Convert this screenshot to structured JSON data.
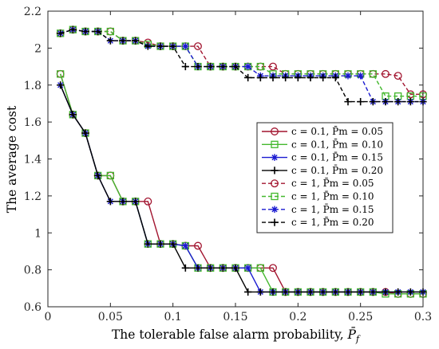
{
  "chart_data": {
    "type": "line",
    "title": "",
    "xlabel": "The tolerable false alarm probability, P̄f",
    "ylabel": "The average cost",
    "xlim": [
      0,
      0.3
    ],
    "ylim": [
      0.6,
      2.2
    ],
    "xticks": [
      "0",
      "0.05",
      "0.1",
      "0.15",
      "0.2",
      "0.25",
      "0.3"
    ],
    "yticks": [
      "0.6",
      "0.8",
      "1",
      "1.2",
      "1.4",
      "1.6",
      "1.8",
      "2",
      "2.2"
    ],
    "grid": false,
    "legend_position": "right",
    "x": [
      0.01,
      0.02,
      0.03,
      0.04,
      0.05,
      0.06,
      0.07,
      0.08,
      0.09,
      0.1,
      0.11,
      0.12,
      0.13,
      0.14,
      0.15,
      0.16,
      0.17,
      0.18,
      0.19,
      0.2,
      0.21,
      0.22,
      0.23,
      0.24,
      0.25,
      0.26,
      0.27,
      0.28,
      0.29,
      0.3
    ],
    "series": [
      {
        "name": "c = 0.1, P̄m = 0.05",
        "color": "#a2142f",
        "marker": "circle",
        "dash": "solid",
        "values": [
          1.86,
          1.64,
          1.54,
          1.31,
          1.31,
          1.17,
          1.17,
          1.17,
          0.94,
          0.94,
          0.93,
          0.93,
          0.81,
          0.81,
          0.81,
          0.81,
          0.81,
          0.81,
          0.68,
          0.68,
          0.68,
          0.68,
          0.68,
          0.68,
          0.68,
          0.68,
          0.68,
          0.67,
          0.67,
          0.67
        ]
      },
      {
        "name": "c = 0.1, P̄m = 0.10",
        "color": "#44b82e",
        "marker": "square",
        "dash": "solid",
        "values": [
          1.86,
          1.64,
          1.54,
          1.31,
          1.31,
          1.17,
          1.17,
          0.94,
          0.94,
          0.94,
          0.93,
          0.81,
          0.81,
          0.81,
          0.81,
          0.81,
          0.81,
          0.68,
          0.68,
          0.68,
          0.68,
          0.68,
          0.68,
          0.68,
          0.68,
          0.68,
          0.67,
          0.67,
          0.67,
          0.67
        ]
      },
      {
        "name": "c = 0.1, P̄m = 0.15",
        "color": "#1a1ad1",
        "marker": "asterisk",
        "dash": "solid",
        "values": [
          1.8,
          1.64,
          1.54,
          1.31,
          1.17,
          1.17,
          1.17,
          0.94,
          0.94,
          0.94,
          0.93,
          0.81,
          0.81,
          0.81,
          0.81,
          0.81,
          0.68,
          0.68,
          0.68,
          0.68,
          0.68,
          0.68,
          0.68,
          0.68,
          0.68,
          0.68,
          0.68,
          0.68,
          0.68,
          0.68
        ]
      },
      {
        "name": "c = 0.1, P̄m = 0.20",
        "color": "#000000",
        "marker": "plus",
        "dash": "solid",
        "values": [
          1.8,
          1.64,
          1.54,
          1.31,
          1.17,
          1.17,
          1.17,
          0.94,
          0.94,
          0.94,
          0.81,
          0.81,
          0.81,
          0.81,
          0.81,
          0.68,
          0.68,
          0.68,
          0.68,
          0.68,
          0.68,
          0.68,
          0.68,
          0.68,
          0.68,
          0.68,
          0.68,
          0.68,
          0.68,
          0.68
        ]
      },
      {
        "name": "c = 1, P̄m = 0.05",
        "color": "#a2142f",
        "marker": "circle",
        "dash": "dashed",
        "values": [
          2.08,
          2.1,
          2.09,
          2.09,
          2.09,
          2.04,
          2.04,
          2.03,
          2.01,
          2.01,
          2.01,
          2.01,
          1.9,
          1.9,
          1.9,
          1.9,
          1.9,
          1.9,
          1.86,
          1.86,
          1.86,
          1.86,
          1.86,
          1.86,
          1.86,
          1.86,
          1.86,
          1.85,
          1.75,
          1.75
        ]
      },
      {
        "name": "c = 1, P̄m = 0.10",
        "color": "#44b82e",
        "marker": "square",
        "dash": "dashed",
        "values": [
          2.08,
          2.1,
          2.09,
          2.09,
          2.09,
          2.04,
          2.04,
          2.02,
          2.01,
          2.01,
          2.01,
          1.9,
          1.9,
          1.9,
          1.9,
          1.9,
          1.9,
          1.86,
          1.86,
          1.86,
          1.86,
          1.86,
          1.86,
          1.86,
          1.86,
          1.86,
          1.74,
          1.74,
          1.74,
          1.74
        ]
      },
      {
        "name": "c = 1, P̄m = 0.15",
        "color": "#1a1ad1",
        "marker": "asterisk",
        "dash": "dashed",
        "values": [
          2.08,
          2.1,
          2.09,
          2.09,
          2.04,
          2.04,
          2.04,
          2.01,
          2.01,
          2.01,
          2.01,
          1.9,
          1.9,
          1.9,
          1.9,
          1.9,
          1.85,
          1.85,
          1.85,
          1.85,
          1.85,
          1.85,
          1.85,
          1.85,
          1.85,
          1.71,
          1.71,
          1.71,
          1.71,
          1.71
        ]
      },
      {
        "name": "c = 1, P̄m = 0.20",
        "color": "#000000",
        "marker": "plus",
        "dash": "dashed",
        "values": [
          2.08,
          2.1,
          2.09,
          2.09,
          2.04,
          2.04,
          2.04,
          2.01,
          2.01,
          2.01,
          1.9,
          1.9,
          1.9,
          1.9,
          1.9,
          1.84,
          1.84,
          1.84,
          1.84,
          1.84,
          1.84,
          1.84,
          1.84,
          1.71,
          1.71,
          1.71,
          1.71,
          1.71,
          1.71,
          1.71
        ]
      }
    ]
  }
}
